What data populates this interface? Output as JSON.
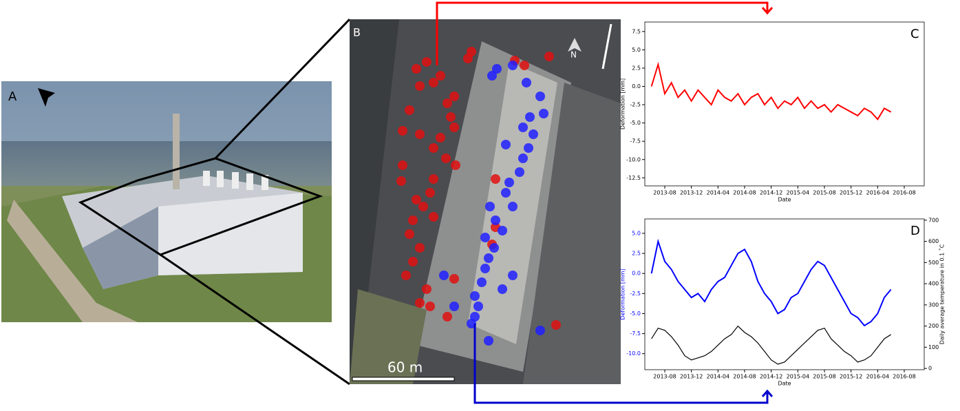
{
  "panels": {
    "a": "A",
    "b": "B",
    "north": "N",
    "scale": "60 m"
  },
  "chart_data": [
    {
      "type": "line",
      "panel": "C",
      "xlabel": "Date",
      "ylabel": "Deformation [mm]",
      "color": "#ff0000",
      "x": [
        "2013-06",
        "2013-07",
        "2013-08",
        "2013-09",
        "2013-10",
        "2013-11",
        "2013-12",
        "2014-01",
        "2014-02",
        "2014-03",
        "2014-04",
        "2014-05",
        "2014-06",
        "2014-07",
        "2014-08",
        "2014-09",
        "2014-10",
        "2014-11",
        "2014-12",
        "2015-01",
        "2015-02",
        "2015-03",
        "2015-04",
        "2015-05",
        "2015-06",
        "2015-07",
        "2015-08",
        "2015-09",
        "2015-10",
        "2015-11",
        "2015-12",
        "2016-01",
        "2016-02",
        "2016-03",
        "2016-04",
        "2016-05",
        "2016-06"
      ],
      "values": [
        0,
        3,
        -1,
        0.5,
        -1.5,
        -0.5,
        -2,
        -0.5,
        -1.5,
        -2.5,
        -0.5,
        -1.5,
        -2,
        -1,
        -2.5,
        -1.5,
        -1,
        -2.5,
        -1.5,
        -3,
        -2,
        -2.5,
        -1.5,
        -3,
        -2,
        -3,
        -2.5,
        -3.5,
        -2.5,
        -3,
        -3.5,
        -4,
        -3,
        -3.5,
        -4.5,
        -3,
        -3.5
      ],
      "xlim": [
        "2013-05",
        "2016-11"
      ],
      "xticks": [
        "2013-08",
        "2013-12",
        "2014-04",
        "2014-08",
        "2014-12",
        "2015-04",
        "2015-08",
        "2015-12",
        "2016-04",
        "2016-08"
      ],
      "ylim": [
        -13.6,
        8.8
      ],
      "yticks": [
        7.5,
        {
          "value": 5,
          "label": "5.0"
        },
        2.5,
        {
          "value": 0,
          "label": "0.0"
        },
        -2.5,
        {
          "value": -5,
          "label": "-5.0"
        },
        -7.5,
        {
          "value": -10,
          "label": "-10.0"
        },
        -12.5
      ]
    },
    {
      "type": "line",
      "panel": "D",
      "xlabel": "Date",
      "ylabel": "Deformation [mm]",
      "y2label": "Daily average temperature in 0.1 ˚C",
      "x": [
        "2013-06",
        "2013-07",
        "2013-08",
        "2013-09",
        "2013-10",
        "2013-11",
        "2013-12",
        "2014-01",
        "2014-02",
        "2014-03",
        "2014-04",
        "2014-05",
        "2014-06",
        "2014-07",
        "2014-08",
        "2014-09",
        "2014-10",
        "2014-11",
        "2014-12",
        "2015-01",
        "2015-02",
        "2015-03",
        "2015-04",
        "2015-05",
        "2015-06",
        "2015-07",
        "2015-08",
        "2015-09",
        "2015-10",
        "2015-11",
        "2015-12",
        "2016-01",
        "2016-02",
        "2016-03",
        "2016-04",
        "2016-05",
        "2016-06"
      ],
      "series": [
        {
          "color": "#0000ff",
          "values": [
            0,
            4,
            1.5,
            0.5,
            -1,
            -2,
            -3,
            -2.5,
            -3.5,
            -2,
            -1,
            -0.5,
            1,
            2.5,
            3,
            1.5,
            -1,
            -2.5,
            -3.5,
            -5,
            -4.5,
            -3,
            -2.5,
            -1,
            0.5,
            1.5,
            1,
            -0.5,
            -2,
            -3.5,
            -5,
            -5.5,
            -6.5,
            -6,
            -5,
            -3,
            -2
          ]
        },
        {
          "color": "#000000",
          "axis": "y2",
          "values": [
            140,
            190,
            180,
            150,
            110,
            60,
            40,
            50,
            60,
            80,
            110,
            140,
            160,
            200,
            170,
            150,
            120,
            80,
            40,
            20,
            30,
            60,
            90,
            120,
            150,
            180,
            190,
            140,
            110,
            80,
            60,
            30,
            40,
            60,
            100,
            140,
            160
          ]
        }
      ],
      "xlim": [
        "2013-05",
        "2016-11"
      ],
      "xticks": [
        "2013-08",
        "2013-12",
        "2014-04",
        "2014-08",
        "2014-12",
        "2015-04",
        "2015-08",
        "2015-12",
        "2016-04",
        "2016-08"
      ],
      "ylim": [
        -12,
        6.8
      ],
      "yticks": [
        {
          "value": 5,
          "label": "5.0"
        },
        2.5,
        {
          "value": 0,
          "label": "0.0"
        },
        -2.5,
        {
          "value": -5,
          "label": "-5.0"
        },
        -7.5,
        {
          "value": -10,
          "label": "-10.0"
        }
      ],
      "y2lim": [
        -6,
        706
      ],
      "y2ticks": [
        0,
        100,
        200,
        300,
        400,
        500,
        600,
        700
      ]
    }
  ]
}
